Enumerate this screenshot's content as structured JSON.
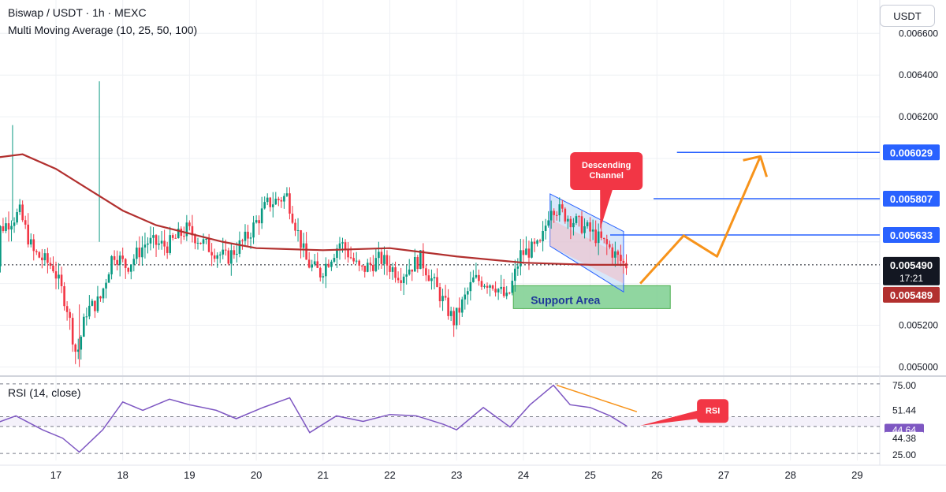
{
  "header": {
    "symbol_line": "Biswap / USDT · 1h · MEXC",
    "indicator_line": "Multi Moving Average (10, 25, 50, 100)",
    "currency_button": "USDT"
  },
  "rsi_pane": {
    "label": "RSI (14, close)",
    "levels": [
      "75.00",
      "51.44",
      "44.64",
      "44.38",
      "25.00"
    ],
    "callout": "RSI"
  },
  "price_tags": {
    "t1": "0.006029",
    "t2": "0.005807",
    "t3": "0.005633",
    "current": "0.005490",
    "countdown": "17:21",
    "ma": "0.005489"
  },
  "annotations": {
    "channel_callout": "Descending Channel",
    "support": "Support Area"
  },
  "colors": {
    "up": "#089981",
    "down": "#f23645",
    "ma": "#b2302f",
    "rsi": "#7e57c2",
    "arrow": "#f7931a",
    "target_line": "#2962ff",
    "callout": "#f23645",
    "support_fill": "#7ccf8f",
    "channel_fill": "#b8d4f5"
  },
  "chart_data": {
    "type": "candlestick",
    "title": "Biswap / USDT · 1h · MEXC",
    "x_ticks": [
      "17",
      "18",
      "19",
      "20",
      "21",
      "22",
      "23",
      "24",
      "25",
      "26",
      "27",
      "28",
      "29"
    ],
    "y_ticks": [
      "0.005000",
      "0.005200",
      "0.006200",
      "0.006400",
      "0.006600"
    ],
    "ylim": [
      0.00496,
      0.00676
    ],
    "price_series": [
      {
        "day": 16.2,
        "price": 0.00566
      },
      {
        "day": 16.5,
        "price": 0.00574
      },
      {
        "day": 16.7,
        "price": 0.00555
      },
      {
        "day": 17.0,
        "price": 0.00548
      },
      {
        "day": 17.2,
        "price": 0.0053
      },
      {
        "day": 17.35,
        "price": 0.00505
      },
      {
        "day": 17.5,
        "price": 0.00527
      },
      {
        "day": 17.7,
        "price": 0.00532
      },
      {
        "day": 17.9,
        "price": 0.00555
      },
      {
        "day": 18.1,
        "price": 0.00548
      },
      {
        "day": 18.4,
        "price": 0.0056
      },
      {
        "day": 18.7,
        "price": 0.00558
      },
      {
        "day": 19.0,
        "price": 0.00566
      },
      {
        "day": 19.3,
        "price": 0.00558
      },
      {
        "day": 19.6,
        "price": 0.00552
      },
      {
        "day": 19.9,
        "price": 0.00562
      },
      {
        "day": 20.2,
        "price": 0.00578
      },
      {
        "day": 20.5,
        "price": 0.00582
      },
      {
        "day": 20.8,
        "price": 0.0055
      },
      {
        "day": 21.0,
        "price": 0.00545
      },
      {
        "day": 21.3,
        "price": 0.0056
      },
      {
        "day": 21.6,
        "price": 0.00546
      },
      {
        "day": 21.9,
        "price": 0.00552
      },
      {
        "day": 22.2,
        "price": 0.00544
      },
      {
        "day": 22.5,
        "price": 0.00552
      },
      {
        "day": 22.8,
        "price": 0.00534
      },
      {
        "day": 23.0,
        "price": 0.00522
      },
      {
        "day": 23.3,
        "price": 0.00542
      },
      {
        "day": 23.6,
        "price": 0.0054
      },
      {
        "day": 23.8,
        "price": 0.00532
      },
      {
        "day": 24.0,
        "price": 0.00554
      },
      {
        "day": 24.3,
        "price": 0.00558
      },
      {
        "day": 24.45,
        "price": 0.00578
      },
      {
        "day": 24.7,
        "price": 0.00572
      },
      {
        "day": 25.0,
        "price": 0.00566
      },
      {
        "day": 25.3,
        "price": 0.00558
      },
      {
        "day": 25.55,
        "price": 0.00549
      }
    ],
    "moving_average": [
      {
        "day": 16.0,
        "price": 0.006
      },
      {
        "day": 16.5,
        "price": 0.00602
      },
      {
        "day": 17.0,
        "price": 0.00595
      },
      {
        "day": 17.5,
        "price": 0.00585
      },
      {
        "day": 18.0,
        "price": 0.00575
      },
      {
        "day": 18.5,
        "price": 0.00568
      },
      {
        "day": 19.0,
        "price": 0.00564
      },
      {
        "day": 19.5,
        "price": 0.0056
      },
      {
        "day": 20.0,
        "price": 0.00557
      },
      {
        "day": 21.0,
        "price": 0.00556
      },
      {
        "day": 22.0,
        "price": 0.00557
      },
      {
        "day": 23.0,
        "price": 0.00553
      },
      {
        "day": 24.0,
        "price": 0.0055
      },
      {
        "day": 25.0,
        "price": 0.00549
      },
      {
        "day": 25.55,
        "price": 0.00549
      }
    ],
    "target_levels": [
      0.006029,
      0.005807,
      0.005633
    ],
    "current_price": 0.00549,
    "ma_price": 0.005489,
    "support_zone": {
      "from_day": 23.85,
      "to_day": 26.2,
      "low": 0.00528,
      "high": 0.00539
    },
    "projection_path": [
      {
        "day": 25.75,
        "price": 0.0054
      },
      {
        "day": 26.4,
        "price": 0.00563
      },
      {
        "day": 26.9,
        "price": 0.00553
      },
      {
        "day": 27.55,
        "price": 0.00601
      }
    ],
    "rsi": {
      "ylim": [
        20,
        80
      ],
      "levels": [
        75,
        51.44,
        44.38,
        25
      ],
      "current": 44.64,
      "series": [
        {
          "day": 16.0,
          "value": 45
        },
        {
          "day": 16.4,
          "value": 52
        },
        {
          "day": 16.8,
          "value": 42
        },
        {
          "day": 17.1,
          "value": 36
        },
        {
          "day": 17.35,
          "value": 26
        },
        {
          "day": 17.7,
          "value": 42
        },
        {
          "day": 18.0,
          "value": 62
        },
        {
          "day": 18.3,
          "value": 56
        },
        {
          "day": 18.7,
          "value": 64
        },
        {
          "day": 19.0,
          "value": 60
        },
        {
          "day": 19.4,
          "value": 56
        },
        {
          "day": 19.7,
          "value": 50
        },
        {
          "day": 20.1,
          "value": 58
        },
        {
          "day": 20.5,
          "value": 65
        },
        {
          "day": 20.8,
          "value": 40
        },
        {
          "day": 21.2,
          "value": 52
        },
        {
          "day": 21.6,
          "value": 48
        },
        {
          "day": 22.0,
          "value": 53
        },
        {
          "day": 22.4,
          "value": 52
        },
        {
          "day": 22.8,
          "value": 46
        },
        {
          "day": 23.0,
          "value": 42
        },
        {
          "day": 23.4,
          "value": 58
        },
        {
          "day": 23.8,
          "value": 44
        },
        {
          "day": 24.1,
          "value": 60
        },
        {
          "day": 24.45,
          "value": 74
        },
        {
          "day": 24.7,
          "value": 60
        },
        {
          "day": 25.0,
          "value": 58
        },
        {
          "day": 25.3,
          "value": 52
        },
        {
          "day": 25.55,
          "value": 44.6
        }
      ]
    }
  }
}
